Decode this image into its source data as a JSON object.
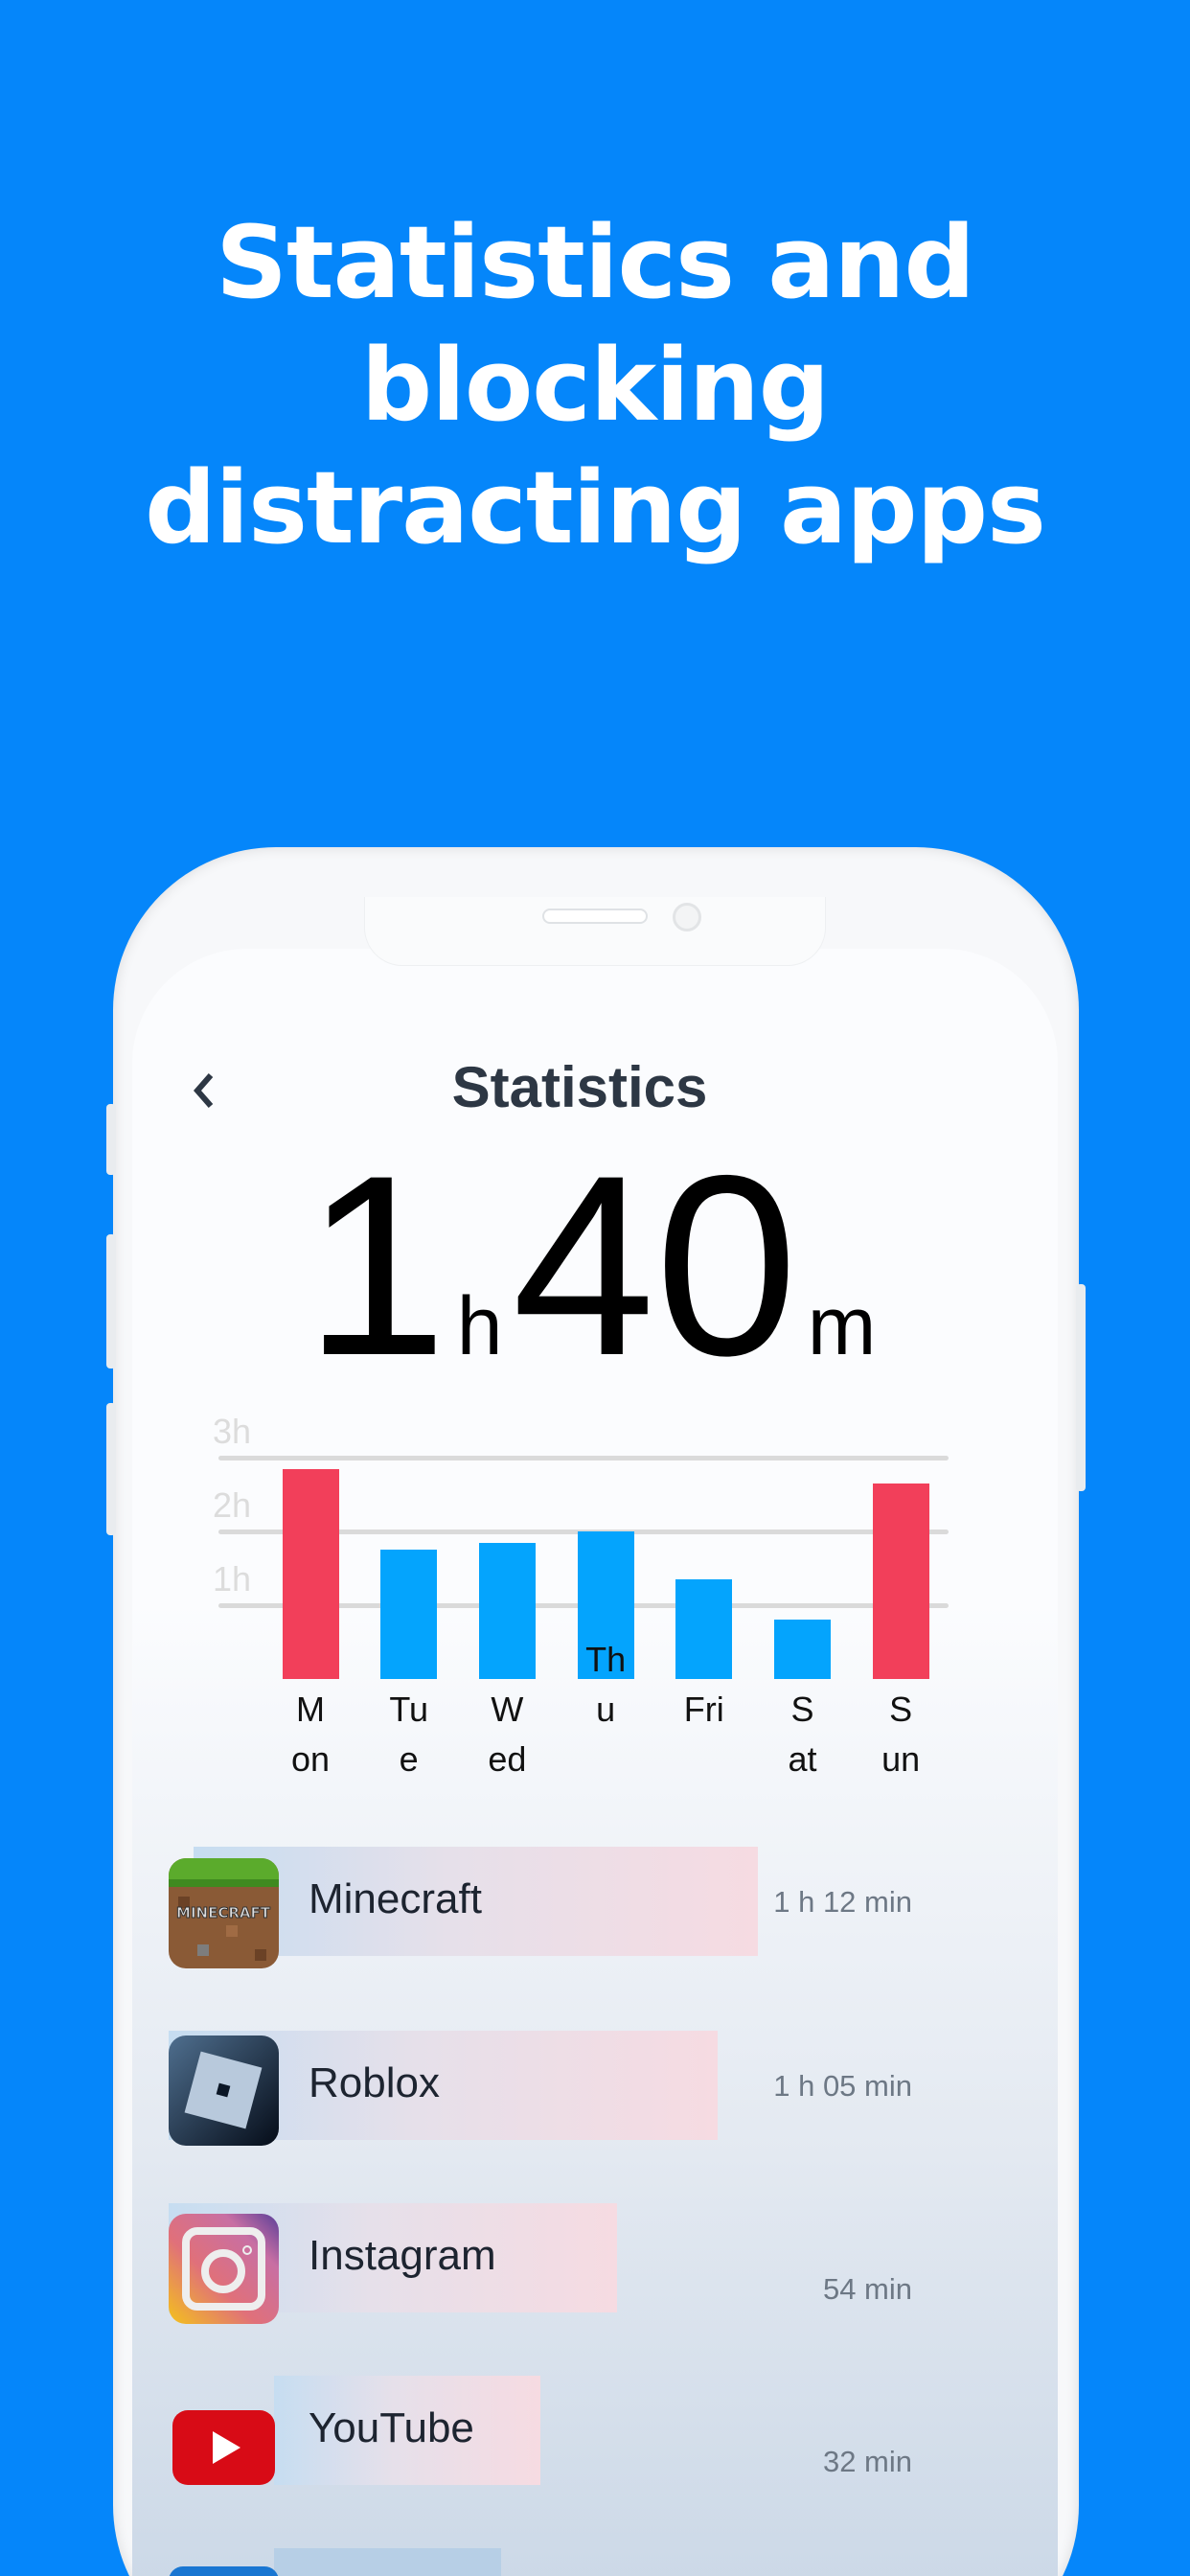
{
  "headline": {
    "line1": "Statistics and blocking",
    "line2": "distracting apps"
  },
  "colors": {
    "background": "#0586fa",
    "weekend_bar": "#f23f5a",
    "weekday_bar": "#04a4fd"
  },
  "screen": {
    "back_icon": "chevron-left-icon",
    "title": "Statistics",
    "total": {
      "hours": "1",
      "hours_unit": "h",
      "minutes": "40",
      "minutes_unit": "m"
    }
  },
  "chart_data": {
    "type": "bar",
    "categories": [
      "Mon",
      "Tue",
      "Wed",
      "Thu",
      "Fri",
      "Sat",
      "Sun"
    ],
    "values": [
      2.85,
      1.75,
      1.85,
      2.0,
      1.35,
      0.8,
      2.65
    ],
    "highlighted": [
      "Mon",
      "Sun"
    ],
    "yticks": [
      "1h",
      "2h",
      "3h"
    ],
    "ylim": [
      0,
      3
    ],
    "grid": true,
    "xlabel": "",
    "ylabel": ""
  },
  "apps": [
    {
      "name": "Minecraft",
      "time": "1 h 12 min",
      "minutes": 72,
      "icon": "minecraft-icon"
    },
    {
      "name": "Roblox",
      "time": "1 h 05 min",
      "minutes": 65,
      "icon": "roblox-icon"
    },
    {
      "name": "Instagram",
      "time": "54 min",
      "minutes": 54,
      "icon": "instagram-icon"
    },
    {
      "name": "YouTube",
      "time": "32 min",
      "minutes": 32,
      "icon": "youtube-icon"
    }
  ]
}
